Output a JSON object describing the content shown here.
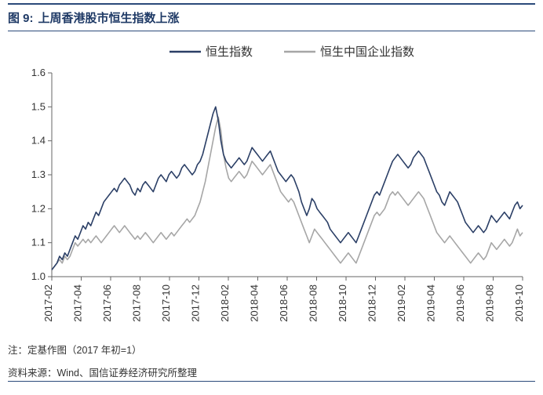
{
  "header": {
    "figure_label": "图 9:",
    "title": "上周香港股市恒生指数上涨"
  },
  "chart": {
    "type": "line",
    "background_color": "#ffffff",
    "axis_line_color": "#666666",
    "axis_line_width": 1,
    "tick_length": 5,
    "y_axis": {
      "min": 1.0,
      "max": 1.6,
      "step": 0.1,
      "labels": [
        "1.0",
        "1.1",
        "1.2",
        "1.3",
        "1.4",
        "1.5",
        "1.6"
      ],
      "label_fontsize": 13
    },
    "x_axis": {
      "labels": [
        "2017-02",
        "2017-04",
        "2017-06",
        "2017-08",
        "2017-10",
        "2017-12",
        "2018-02",
        "2018-04",
        "2018-06",
        "2018-08",
        "2018-10",
        "2018-12",
        "2019-02",
        "2019-04",
        "2019-06",
        "2019-08",
        "2019-10"
      ],
      "label_fontsize": 13,
      "label_rotation": -90
    },
    "legend": {
      "position": "top-center",
      "fontsize": 15,
      "items": [
        {
          "label": "恒生指数",
          "color": "#2b3f66",
          "width": 2.5
        },
        {
          "label": "恒生中国企业指数",
          "color": "#a6a6a6",
          "width": 2.5
        }
      ]
    },
    "series": [
      {
        "name": "恒生指数",
        "color": "#2b3f66",
        "width": 1.6,
        "data": [
          1.02,
          1.03,
          1.04,
          1.06,
          1.05,
          1.07,
          1.06,
          1.08,
          1.1,
          1.12,
          1.11,
          1.13,
          1.15,
          1.14,
          1.16,
          1.15,
          1.17,
          1.19,
          1.18,
          1.2,
          1.22,
          1.23,
          1.24,
          1.25,
          1.26,
          1.25,
          1.27,
          1.28,
          1.29,
          1.28,
          1.27,
          1.25,
          1.24,
          1.26,
          1.25,
          1.27,
          1.28,
          1.27,
          1.26,
          1.25,
          1.27,
          1.29,
          1.3,
          1.29,
          1.28,
          1.3,
          1.31,
          1.3,
          1.29,
          1.3,
          1.32,
          1.33,
          1.32,
          1.31,
          1.3,
          1.31,
          1.33,
          1.34,
          1.36,
          1.39,
          1.42,
          1.45,
          1.48,
          1.5,
          1.46,
          1.4,
          1.36,
          1.34,
          1.33,
          1.32,
          1.33,
          1.34,
          1.35,
          1.34,
          1.33,
          1.34,
          1.36,
          1.38,
          1.37,
          1.36,
          1.35,
          1.34,
          1.35,
          1.36,
          1.37,
          1.35,
          1.33,
          1.31,
          1.3,
          1.29,
          1.28,
          1.29,
          1.3,
          1.29,
          1.27,
          1.25,
          1.22,
          1.2,
          1.18,
          1.2,
          1.23,
          1.22,
          1.2,
          1.19,
          1.18,
          1.17,
          1.16,
          1.14,
          1.13,
          1.12,
          1.11,
          1.1,
          1.11,
          1.12,
          1.13,
          1.12,
          1.11,
          1.1,
          1.12,
          1.14,
          1.16,
          1.18,
          1.2,
          1.22,
          1.24,
          1.25,
          1.24,
          1.26,
          1.28,
          1.3,
          1.32,
          1.34,
          1.35,
          1.36,
          1.35,
          1.34,
          1.33,
          1.32,
          1.33,
          1.35,
          1.36,
          1.37,
          1.36,
          1.35,
          1.33,
          1.31,
          1.29,
          1.27,
          1.25,
          1.24,
          1.22,
          1.21,
          1.23,
          1.25,
          1.24,
          1.23,
          1.22,
          1.2,
          1.18,
          1.16,
          1.15,
          1.14,
          1.13,
          1.14,
          1.15,
          1.14,
          1.13,
          1.14,
          1.16,
          1.18,
          1.17,
          1.16,
          1.17,
          1.18,
          1.19,
          1.18,
          1.17,
          1.19,
          1.21,
          1.22,
          1.2,
          1.21
        ]
      },
      {
        "name": "恒生中国企业指数",
        "color": "#a6a6a6",
        "width": 1.6,
        "data": [
          1.02,
          1.03,
          1.04,
          1.05,
          1.04,
          1.06,
          1.05,
          1.06,
          1.08,
          1.1,
          1.09,
          1.1,
          1.11,
          1.1,
          1.11,
          1.1,
          1.11,
          1.12,
          1.11,
          1.1,
          1.11,
          1.12,
          1.13,
          1.14,
          1.15,
          1.14,
          1.13,
          1.14,
          1.15,
          1.14,
          1.13,
          1.12,
          1.11,
          1.12,
          1.11,
          1.12,
          1.13,
          1.12,
          1.11,
          1.1,
          1.11,
          1.12,
          1.13,
          1.12,
          1.11,
          1.12,
          1.13,
          1.12,
          1.13,
          1.14,
          1.15,
          1.16,
          1.17,
          1.16,
          1.17,
          1.18,
          1.2,
          1.22,
          1.25,
          1.28,
          1.32,
          1.36,
          1.4,
          1.44,
          1.47,
          1.43,
          1.36,
          1.32,
          1.29,
          1.28,
          1.29,
          1.3,
          1.31,
          1.3,
          1.29,
          1.3,
          1.32,
          1.34,
          1.33,
          1.32,
          1.31,
          1.3,
          1.31,
          1.32,
          1.33,
          1.31,
          1.29,
          1.27,
          1.25,
          1.24,
          1.23,
          1.22,
          1.23,
          1.22,
          1.2,
          1.18,
          1.16,
          1.14,
          1.12,
          1.1,
          1.12,
          1.14,
          1.13,
          1.12,
          1.11,
          1.1,
          1.09,
          1.08,
          1.07,
          1.06,
          1.05,
          1.04,
          1.05,
          1.06,
          1.07,
          1.06,
          1.05,
          1.04,
          1.06,
          1.08,
          1.1,
          1.12,
          1.14,
          1.16,
          1.18,
          1.19,
          1.18,
          1.19,
          1.2,
          1.22,
          1.24,
          1.25,
          1.24,
          1.25,
          1.24,
          1.23,
          1.22,
          1.21,
          1.22,
          1.23,
          1.24,
          1.25,
          1.24,
          1.23,
          1.21,
          1.19,
          1.17,
          1.15,
          1.13,
          1.12,
          1.11,
          1.1,
          1.11,
          1.12,
          1.11,
          1.1,
          1.09,
          1.08,
          1.07,
          1.06,
          1.05,
          1.04,
          1.05,
          1.06,
          1.07,
          1.06,
          1.05,
          1.06,
          1.08,
          1.1,
          1.09,
          1.08,
          1.09,
          1.1,
          1.11,
          1.1,
          1.09,
          1.1,
          1.12,
          1.14,
          1.12,
          1.13
        ]
      }
    ]
  },
  "footnote": "注：定基作图（2017 年初=1）",
  "source": "资料来源：Wind、国信证券经济研究所整理"
}
